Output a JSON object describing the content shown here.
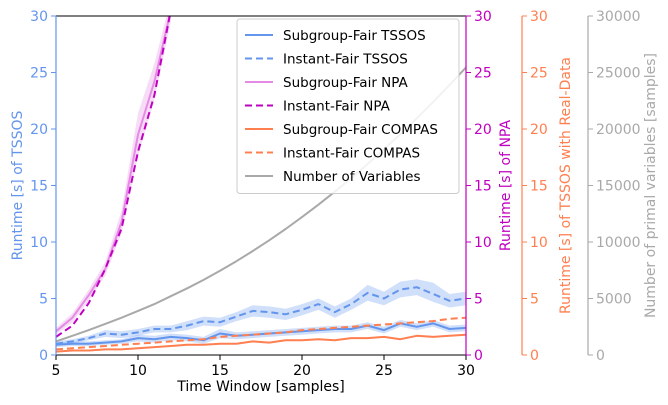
{
  "chart_data": {
    "type": "line",
    "title": "",
    "xlabel": "Time Window [samples]",
    "xlim": [
      5,
      30
    ],
    "x_ticks": [
      5,
      10,
      15,
      20,
      25,
      30
    ],
    "grid": false,
    "legend_placement": "top-center",
    "axes": [
      {
        "id": "runtime_tssos",
        "side": "left",
        "label": "Runtime [s] of TSSOS",
        "ylim": [
          0,
          30
        ],
        "ticks": [
          0,
          5,
          10,
          15,
          20,
          25,
          30
        ],
        "color": "#6495ed"
      },
      {
        "id": "runtime_npa",
        "side": "right",
        "label": "Runtime [s] of NPA",
        "ylim": [
          0,
          30
        ],
        "ticks": [
          0,
          5,
          10,
          15,
          20,
          25,
          30
        ],
        "color": "#c000c0"
      },
      {
        "id": "runtime_realdata",
        "side": "right",
        "label": "Runtime [s] of TSSOS with Real-Data",
        "ylim": [
          0,
          30
        ],
        "ticks": [
          0,
          5,
          10,
          15,
          20,
          25,
          30
        ],
        "color": "#ff7f50"
      },
      {
        "id": "num_variables",
        "side": "right",
        "label": "Number of primal variables [samples]",
        "ylim": [
          0,
          30000
        ],
        "ticks": [
          0,
          5000,
          10000,
          15000,
          20000,
          25000,
          30000
        ],
        "color": "#a9a9a9"
      }
    ],
    "series": [
      {
        "name": "Subgroup-Fair TSSOS",
        "axis": "runtime_tssos",
        "color": "#6495ed",
        "dash": "solid",
        "x": [
          5,
          6,
          7,
          8,
          9,
          10,
          11,
          12,
          13,
          14,
          15,
          16,
          17,
          18,
          19,
          20,
          21,
          22,
          23,
          24,
          25,
          26,
          27,
          28,
          29,
          30
        ],
        "y": [
          0.9,
          1.0,
          1.0,
          1.1,
          1.2,
          1.5,
          1.4,
          1.6,
          1.5,
          1.3,
          1.9,
          1.7,
          1.8,
          1.9,
          2.0,
          2.1,
          2.2,
          2.3,
          2.3,
          2.6,
          2.2,
          2.8,
          2.5,
          2.8,
          2.3,
          2.4
        ],
        "band_low": [
          0.7,
          0.8,
          0.8,
          0.9,
          1.0,
          1.2,
          1.1,
          1.3,
          1.2,
          1.0,
          1.5,
          1.4,
          1.5,
          1.6,
          1.7,
          1.8,
          1.9,
          2.0,
          2.0,
          2.3,
          1.9,
          2.5,
          2.2,
          2.5,
          2.0,
          2.1
        ],
        "band_high": [
          1.1,
          1.2,
          1.2,
          1.3,
          1.4,
          1.8,
          1.7,
          1.9,
          1.8,
          1.6,
          2.3,
          2.0,
          2.1,
          2.2,
          2.3,
          2.4,
          2.5,
          2.6,
          2.6,
          2.9,
          2.5,
          3.1,
          2.8,
          3.1,
          2.6,
          2.7
        ]
      },
      {
        "name": "Instant-Fair TSSOS",
        "axis": "runtime_tssos",
        "color": "#6495ed",
        "dash": "dashed",
        "x": [
          5,
          6,
          7,
          8,
          9,
          10,
          11,
          12,
          13,
          14,
          15,
          16,
          17,
          18,
          19,
          20,
          21,
          22,
          23,
          24,
          25,
          26,
          27,
          28,
          29,
          30
        ],
        "y": [
          1.0,
          1.2,
          1.5,
          1.9,
          1.8,
          2.0,
          2.3,
          2.3,
          2.6,
          3.0,
          2.9,
          3.4,
          3.9,
          3.8,
          3.6,
          4.0,
          4.5,
          3.8,
          4.5,
          5.5,
          5.0,
          5.8,
          6.0,
          5.4,
          4.8,
          5.0
        ],
        "band_low": [
          0.8,
          1.0,
          1.3,
          1.6,
          1.5,
          1.7,
          2.0,
          2.0,
          2.2,
          2.6,
          2.5,
          3.0,
          3.4,
          3.3,
          3.1,
          3.5,
          4.0,
          3.3,
          4.0,
          4.8,
          4.4,
          5.1,
          5.3,
          4.7,
          4.2,
          4.4
        ],
        "band_high": [
          1.2,
          1.4,
          1.7,
          2.2,
          2.1,
          2.3,
          2.6,
          2.6,
          3.0,
          3.4,
          3.3,
          3.8,
          4.4,
          4.3,
          4.1,
          4.5,
          5.0,
          4.3,
          5.0,
          6.2,
          5.6,
          6.5,
          6.7,
          6.4,
          5.4,
          5.6
        ]
      },
      {
        "name": "Subgroup-Fair NPA",
        "axis": "runtime_npa",
        "color": "#e58be5",
        "dash": "solid",
        "x": [
          5,
          6,
          7,
          8,
          9,
          10,
          11,
          12
        ],
        "y": [
          2.1,
          3.3,
          5.3,
          7.6,
          11.8,
          19.5,
          24.2,
          30.5
        ],
        "band_low": [
          1.8,
          2.9,
          4.8,
          7.0,
          10.8,
          17.6,
          22.6,
          29.5
        ],
        "band_high": [
          2.4,
          3.7,
          5.8,
          8.2,
          12.8,
          21.4,
          25.8,
          31.5
        ]
      },
      {
        "name": "Instant-Fair NPA",
        "axis": "runtime_npa",
        "color": "#c000c0",
        "dash": "dashed",
        "x": [
          5,
          6,
          7,
          8,
          9,
          10,
          11,
          12
        ],
        "y": [
          1.6,
          2.6,
          4.6,
          7.6,
          11.2,
          18.0,
          23.0,
          30.5
        ]
      },
      {
        "name": "Subgroup-Fair COMPAS",
        "axis": "runtime_realdata",
        "color": "#ff7f50",
        "dash": "solid",
        "x": [
          5,
          6,
          7,
          8,
          9,
          10,
          11,
          12,
          13,
          14,
          15,
          16,
          17,
          18,
          19,
          20,
          21,
          22,
          23,
          24,
          25,
          26,
          27,
          28,
          29,
          30
        ],
        "y": [
          0.3,
          0.4,
          0.4,
          0.5,
          0.5,
          0.6,
          0.7,
          0.8,
          0.9,
          0.9,
          1.0,
          1.0,
          1.2,
          1.1,
          1.3,
          1.3,
          1.4,
          1.3,
          1.5,
          1.5,
          1.6,
          1.4,
          1.7,
          1.6,
          1.7,
          1.8
        ]
      },
      {
        "name": "Instant-Fair COMPAS",
        "axis": "runtime_realdata",
        "color": "#ff7f50",
        "dash": "dashed",
        "x": [
          5,
          6,
          7,
          8,
          9,
          10,
          11,
          12,
          13,
          14,
          15,
          16,
          17,
          18,
          19,
          20,
          21,
          22,
          23,
          24,
          25,
          26,
          27,
          28,
          29,
          30
        ],
        "y": [
          0.5,
          0.6,
          0.7,
          0.8,
          0.9,
          1.0,
          1.1,
          1.2,
          1.3,
          1.4,
          1.6,
          1.7,
          1.8,
          1.9,
          2.0,
          2.2,
          2.3,
          2.4,
          2.5,
          2.6,
          2.7,
          2.8,
          2.9,
          3.0,
          3.2,
          3.3
        ]
      },
      {
        "name": "Number of Variables",
        "axis": "num_variables",
        "color": "#a9a9a9",
        "dash": "solid",
        "x": [
          5,
          6,
          7,
          8,
          9,
          10,
          11,
          12,
          13,
          14,
          15,
          16,
          17,
          18,
          19,
          20,
          21,
          22,
          23,
          24,
          25,
          26,
          27,
          28,
          29,
          30
        ],
        "y": [
          1200,
          1700,
          2200,
          2750,
          3300,
          3900,
          4500,
          5200,
          5900,
          6650,
          7450,
          8300,
          9200,
          10150,
          11150,
          12200,
          13300,
          14450,
          15650,
          16900,
          18200,
          19550,
          20950,
          22400,
          23900,
          25450
        ]
      }
    ]
  }
}
